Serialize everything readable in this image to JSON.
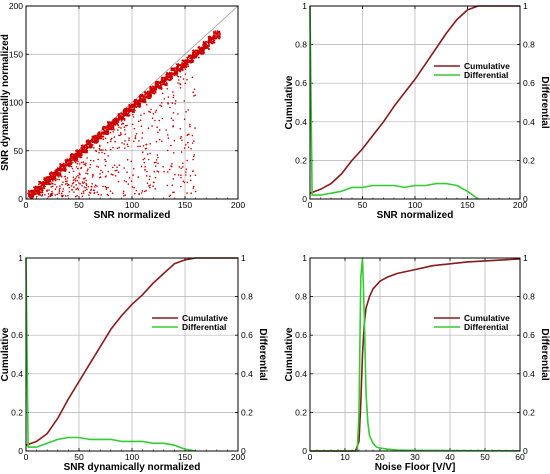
{
  "colors": {
    "scatter": "#cc0000",
    "cumulative": "#8b1a1a",
    "differential": "#33cc33",
    "grid": "#b4b4b4",
    "diagonal": "#999999"
  },
  "chart_data": [
    {
      "type": "scatter",
      "xlabel": "SNR normalized",
      "ylabel": "SNR dynamically normalized",
      "xlim": [
        0,
        200
      ],
      "ylim": [
        0,
        200
      ],
      "xticks": [
        "0",
        "50",
        "100",
        "150",
        "200"
      ],
      "yticks": [
        "0",
        "50",
        "100",
        "150",
        "200"
      ],
      "grid": true,
      "reference_line": "y = x",
      "clusters": [
        {
          "name_hidden": true,
          "description": "dense band along diagonal",
          "points": [
            [
              5,
              5
            ],
            [
              10,
              9
            ],
            [
              15,
              14
            ],
            [
              20,
              19
            ],
            [
              25,
              24
            ],
            [
              30,
              28
            ],
            [
              35,
              33
            ],
            [
              40,
              38
            ],
            [
              45,
              43
            ],
            [
              50,
              47
            ],
            [
              55,
              52
            ],
            [
              60,
              57
            ],
            [
              65,
              62
            ],
            [
              70,
              66
            ],
            [
              75,
              71
            ],
            [
              80,
              76
            ],
            [
              85,
              80
            ],
            [
              90,
              85
            ],
            [
              95,
              90
            ],
            [
              100,
              94
            ],
            [
              105,
              99
            ],
            [
              110,
              104
            ],
            [
              115,
              108
            ],
            [
              120,
              113
            ],
            [
              125,
              118
            ],
            [
              130,
              122
            ],
            [
              135,
              127
            ],
            [
              140,
              132
            ],
            [
              145,
              136
            ],
            [
              150,
              140
            ],
            [
              155,
              145
            ],
            [
              160,
              150
            ],
            [
              165,
              154
            ],
            [
              170,
              159
            ],
            [
              175,
              165
            ],
            [
              180,
              170
            ]
          ]
        }
      ]
    },
    {
      "type": "line",
      "xlabel": "SNR normalized",
      "ylabel": "Cumulative",
      "y2label": "Differential",
      "xlim": [
        0,
        200
      ],
      "ylim": [
        0,
        1
      ],
      "y2lim": [
        0,
        1
      ],
      "xticks": [
        "0",
        "50",
        "100",
        "150",
        "200"
      ],
      "yticks": [
        "0",
        "0.2",
        "0.4",
        "0.6",
        "0.8",
        "1"
      ],
      "grid": true,
      "legend": "right",
      "series": [
        {
          "name": "Cumulative",
          "x": [
            0,
            10,
            20,
            30,
            40,
            50,
            60,
            70,
            80,
            90,
            100,
            110,
            120,
            130,
            140,
            150,
            160,
            170,
            180,
            200
          ],
          "values": [
            0.03,
            0.05,
            0.08,
            0.13,
            0.2,
            0.26,
            0.33,
            0.4,
            0.48,
            0.55,
            0.62,
            0.7,
            0.78,
            0.86,
            0.93,
            0.98,
            1,
            1,
            1,
            1
          ]
        },
        {
          "name": "Differential",
          "x": [
            0,
            2,
            10,
            20,
            30,
            40,
            50,
            60,
            70,
            80,
            90,
            100,
            110,
            120,
            130,
            140,
            150,
            155,
            160
          ],
          "values": [
            1,
            0.02,
            0.02,
            0.03,
            0.04,
            0.06,
            0.06,
            0.07,
            0.07,
            0.07,
            0.06,
            0.07,
            0.07,
            0.08,
            0.08,
            0.07,
            0.04,
            0.02,
            0.0
          ]
        }
      ]
    },
    {
      "type": "line",
      "xlabel": "SNR dynamically normalized",
      "ylabel": "Cumulative",
      "y2label": "Differential",
      "xlim": [
        0,
        200
      ],
      "ylim": [
        0,
        1
      ],
      "y2lim": [
        0,
        1
      ],
      "xticks": [
        "0",
        "50",
        "100",
        "150",
        "200"
      ],
      "yticks": [
        "0",
        "0.2",
        "0.4",
        "0.6",
        "0.8",
        "1"
      ],
      "grid": true,
      "legend": "right",
      "series": [
        {
          "name": "Cumulative",
          "x": [
            0,
            10,
            20,
            30,
            40,
            50,
            60,
            70,
            80,
            90,
            100,
            110,
            120,
            130,
            140,
            150,
            160,
            170,
            180,
            200
          ],
          "values": [
            0.03,
            0.05,
            0.09,
            0.17,
            0.27,
            0.36,
            0.45,
            0.54,
            0.63,
            0.7,
            0.76,
            0.81,
            0.87,
            0.92,
            0.97,
            0.99,
            1,
            1,
            1,
            1
          ]
        },
        {
          "name": "Differential",
          "x": [
            0,
            2,
            10,
            20,
            30,
            40,
            50,
            60,
            70,
            80,
            90,
            100,
            110,
            120,
            130,
            140,
            150,
            160
          ],
          "values": [
            1,
            0.02,
            0.02,
            0.04,
            0.06,
            0.07,
            0.07,
            0.06,
            0.06,
            0.06,
            0.05,
            0.05,
            0.05,
            0.04,
            0.04,
            0.03,
            0.01,
            0.0
          ]
        }
      ]
    },
    {
      "type": "line",
      "xlabel": "Noise Floor [V/V]",
      "ylabel": "Cumulative",
      "y2label": "Differential",
      "xlim": [
        0,
        60
      ],
      "ylim": [
        0,
        1
      ],
      "y2lim": [
        0,
        1
      ],
      "xticks": [
        "0",
        "10",
        "20",
        "30",
        "40",
        "50",
        "60"
      ],
      "yticks": [
        "0",
        "0.2",
        "0.4",
        "0.6",
        "0.8",
        "1"
      ],
      "grid": true,
      "legend": "right",
      "series": [
        {
          "name": "Cumulative",
          "x": [
            0,
            13,
            14,
            14.5,
            15,
            15.5,
            16,
            17,
            18,
            20,
            22,
            25,
            30,
            35,
            40,
            45,
            50,
            55,
            60
          ],
          "values": [
            0,
            0,
            0.05,
            0.25,
            0.5,
            0.66,
            0.74,
            0.8,
            0.84,
            0.88,
            0.9,
            0.92,
            0.94,
            0.96,
            0.97,
            0.98,
            0.985,
            0.99,
            0.995
          ]
        },
        {
          "name": "Differential",
          "x": [
            0,
            13.5,
            14,
            14.5,
            15,
            15.5,
            16,
            16.5,
            17,
            18,
            19,
            20,
            22,
            25,
            30,
            40,
            60
          ],
          "values": [
            0,
            0,
            0.2,
            0.9,
            1,
            0.7,
            0.3,
            0.15,
            0.08,
            0.04,
            0.02,
            0.015,
            0.01,
            0.005,
            0.003,
            0.002,
            0.001
          ]
        }
      ]
    }
  ]
}
